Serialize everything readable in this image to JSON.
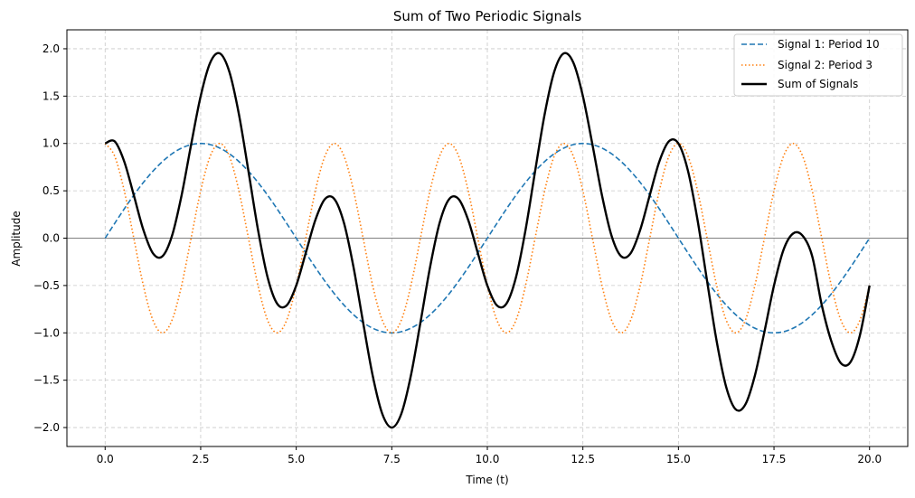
{
  "chart_data": {
    "type": "line",
    "title": "Sum of Two Periodic Signals",
    "xlabel": "Time (t)",
    "ylabel": "Amplitude",
    "xlim": [
      -1,
      21
    ],
    "ylim": [
      -2.2,
      2.2
    ],
    "x_ticks": [
      0,
      2.5,
      5,
      7.5,
      10,
      12.5,
      15,
      17.5,
      20
    ],
    "x_tick_labels": [
      "0.0",
      "2.5",
      "5.0",
      "7.5",
      "10.0",
      "12.5",
      "15.0",
      "17.5",
      "20.0"
    ],
    "y_ticks": [
      -2,
      -1.5,
      -1,
      -0.5,
      0,
      0.5,
      1,
      1.5,
      2
    ],
    "y_tick_labels": [
      "−2.0",
      "−1.5",
      "−1.0",
      "−0.5",
      "0.0",
      "0.5",
      "1.0",
      "1.5",
      "2.0"
    ],
    "grid": true,
    "grid_style": "dashed",
    "zero_line": true,
    "legend_position": "top-right",
    "x": [
      0,
      0.25,
      0.5,
      0.75,
      1,
      1.25,
      1.5,
      1.75,
      2,
      2.25,
      2.5,
      2.75,
      3,
      3.25,
      3.5,
      3.75,
      4,
      4.25,
      4.5,
      4.75,
      5,
      5.25,
      5.5,
      5.75,
      6,
      6.25,
      6.5,
      6.75,
      7,
      7.25,
      7.5,
      7.75,
      8,
      8.25,
      8.5,
      8.75,
      9,
      9.25,
      9.5,
      9.75,
      10,
      10.25,
      10.5,
      10.75,
      11,
      11.25,
      11.5,
      11.75,
      12,
      12.25,
      12.5,
      12.75,
      13,
      13.25,
      13.5,
      13.75,
      14,
      14.25,
      14.5,
      14.75,
      15,
      15.25,
      15.5,
      15.75,
      16,
      16.25,
      16.5,
      16.75,
      17,
      17.25,
      17.5,
      17.75,
      18,
      18.25,
      18.5,
      18.75,
      19,
      19.25,
      19.5,
      19.75,
      20
    ],
    "series": [
      {
        "name": "Signal 1: Period 10",
        "color": "#1f77b4",
        "line_style": "dashed",
        "values": [
          0,
          0.156,
          0.309,
          0.454,
          0.588,
          0.707,
          0.809,
          0.891,
          0.951,
          0.988,
          1,
          0.988,
          0.951,
          0.891,
          0.809,
          0.707,
          0.588,
          0.454,
          0.309,
          0.156,
          0,
          -0.156,
          -0.309,
          -0.454,
          -0.588,
          -0.707,
          -0.809,
          -0.891,
          -0.951,
          -0.988,
          -1,
          -0.988,
          -0.951,
          -0.891,
          -0.809,
          -0.707,
          -0.588,
          -0.454,
          -0.309,
          -0.156,
          0,
          0.156,
          0.309,
          0.454,
          0.588,
          0.707,
          0.809,
          0.891,
          0.951,
          0.988,
          1,
          0.988,
          0.951,
          0.891,
          0.809,
          0.707,
          0.588,
          0.454,
          0.309,
          0.156,
          0,
          -0.156,
          -0.309,
          -0.454,
          -0.588,
          -0.707,
          -0.809,
          -0.891,
          -0.951,
          -0.988,
          -1,
          -0.988,
          -0.951,
          -0.891,
          -0.809,
          -0.707,
          -0.588,
          -0.454,
          -0.309,
          -0.156,
          0
        ]
      },
      {
        "name": "Signal 2: Period 3",
        "color": "#ff7f0e",
        "line_style": "dotted",
        "values": [
          1,
          0.866,
          0.5,
          0,
          -0.5,
          -0.866,
          -1,
          -0.866,
          -0.5,
          0,
          0.5,
          0.866,
          1,
          0.866,
          0.5,
          0,
          -0.5,
          -0.866,
          -1,
          -0.866,
          -0.5,
          0,
          0.5,
          0.866,
          1,
          0.866,
          0.5,
          0,
          -0.5,
          -0.866,
          -1,
          -0.866,
          -0.5,
          0,
          0.5,
          0.866,
          1,
          0.866,
          0.5,
          0,
          -0.5,
          -0.866,
          -1,
          -0.866,
          -0.5,
          0,
          0.5,
          0.866,
          1,
          0.866,
          0.5,
          0,
          -0.5,
          -0.866,
          -1,
          -0.866,
          -0.5,
          0,
          0.5,
          0.866,
          1,
          0.866,
          0.5,
          0,
          -0.5,
          -0.866,
          -1,
          -0.866,
          -0.5,
          0,
          0.5,
          0.866,
          1,
          0.866,
          0.5,
          0,
          -0.5,
          -0.866,
          -1,
          -0.866,
          -0.5
        ]
      },
      {
        "name": "Sum of Signals",
        "color": "#000000",
        "line_style": "solid",
        "values": [
          1,
          1.022,
          0.809,
          0.454,
          0.088,
          -0.159,
          -0.191,
          0.025,
          0.451,
          0.988,
          1.5,
          1.854,
          1.951,
          1.757,
          1.309,
          0.707,
          0.088,
          -0.412,
          -0.691,
          -0.71,
          -0.5,
          -0.156,
          0.191,
          0.412,
          0.412,
          0.159,
          -0.309,
          -0.891,
          -1.451,
          -1.854,
          -2,
          -1.854,
          -1.451,
          -0.891,
          -0.309,
          0.159,
          0.412,
          0.412,
          0.191,
          -0.156,
          -0.5,
          -0.71,
          -0.691,
          -0.412,
          0.088,
          0.707,
          1.309,
          1.757,
          1.951,
          1.854,
          1.5,
          0.988,
          0.451,
          0.025,
          -0.191,
          -0.159,
          0.088,
          0.454,
          0.809,
          1.022,
          1,
          0.71,
          0.191,
          -0.454,
          -1.088,
          -1.573,
          -1.809,
          -1.757,
          -1.451,
          -0.988,
          -0.5,
          -0.122,
          0.049,
          0.025,
          -0.191,
          -0.707,
          -1.088,
          -1.32,
          -1.309,
          -1.022,
          -0.5
        ]
      }
    ]
  }
}
